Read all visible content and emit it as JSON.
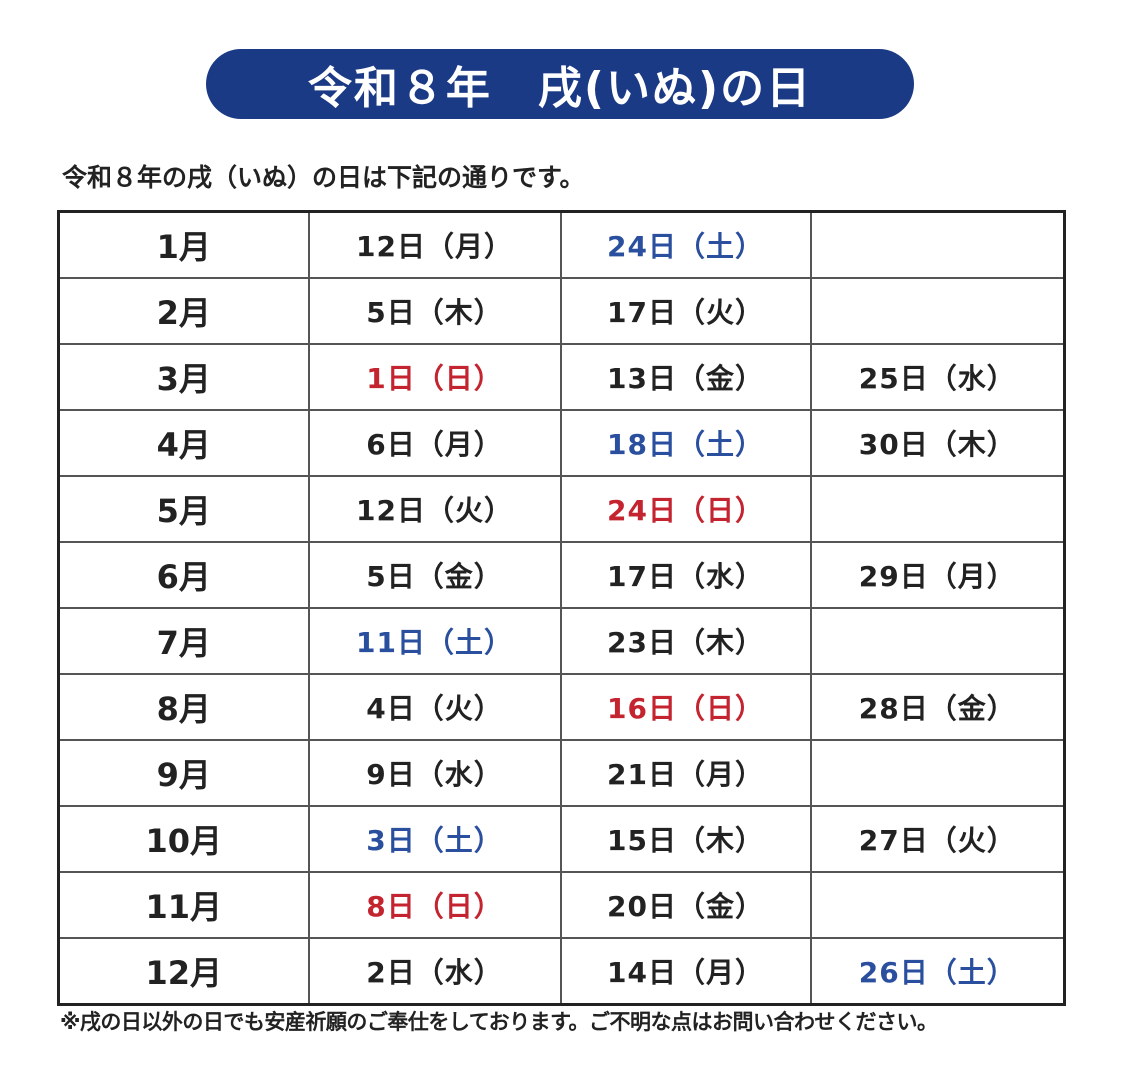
{
  "title": "令和８年　戌(いぬ)の日",
  "intro": "令和８年の戌（いぬ）の日は下記の通りです。",
  "colors": {
    "banner": "#1b3a86",
    "weekday": "#222222",
    "saturday": "#2a4f9e",
    "sunday": "#c4242f"
  },
  "table": {
    "rows": [
      {
        "month": "1月",
        "dates": [
          {
            "text": "12日（月）",
            "type": "weekday"
          },
          {
            "text": "24日（土）",
            "type": "saturday"
          },
          {
            "text": "",
            "type": "weekday"
          }
        ]
      },
      {
        "month": "2月",
        "dates": [
          {
            "text": "5日（木）",
            "type": "weekday"
          },
          {
            "text": "17日（火）",
            "type": "weekday"
          },
          {
            "text": "",
            "type": "weekday"
          }
        ]
      },
      {
        "month": "3月",
        "dates": [
          {
            "text": "1日（日）",
            "type": "sunday"
          },
          {
            "text": "13日（金）",
            "type": "weekday"
          },
          {
            "text": "25日（水）",
            "type": "weekday"
          }
        ]
      },
      {
        "month": "4月",
        "dates": [
          {
            "text": "6日（月）",
            "type": "weekday"
          },
          {
            "text": "18日（土）",
            "type": "saturday"
          },
          {
            "text": "30日（木）",
            "type": "weekday"
          }
        ]
      },
      {
        "month": "5月",
        "dates": [
          {
            "text": "12日（火）",
            "type": "weekday"
          },
          {
            "text": "24日（日）",
            "type": "sunday"
          },
          {
            "text": "",
            "type": "weekday"
          }
        ]
      },
      {
        "month": "6月",
        "dates": [
          {
            "text": "5日（金）",
            "type": "weekday"
          },
          {
            "text": "17日（水）",
            "type": "weekday"
          },
          {
            "text": "29日（月）",
            "type": "weekday"
          }
        ]
      },
      {
        "month": "7月",
        "dates": [
          {
            "text": "11日（土）",
            "type": "saturday"
          },
          {
            "text": "23日（木）",
            "type": "weekday"
          },
          {
            "text": "",
            "type": "weekday"
          }
        ]
      },
      {
        "month": "8月",
        "dates": [
          {
            "text": "4日（火）",
            "type": "weekday"
          },
          {
            "text": "16日（日）",
            "type": "sunday"
          },
          {
            "text": "28日（金）",
            "type": "weekday"
          }
        ]
      },
      {
        "month": "9月",
        "dates": [
          {
            "text": "9日（水）",
            "type": "weekday"
          },
          {
            "text": "21日（月）",
            "type": "weekday"
          },
          {
            "text": "",
            "type": "weekday"
          }
        ]
      },
      {
        "month": "10月",
        "dates": [
          {
            "text": "3日（土）",
            "type": "saturday"
          },
          {
            "text": "15日（木）",
            "type": "weekday"
          },
          {
            "text": "27日（火）",
            "type": "weekday"
          }
        ]
      },
      {
        "month": "11月",
        "dates": [
          {
            "text": "8日（日）",
            "type": "sunday"
          },
          {
            "text": "20日（金）",
            "type": "weekday"
          },
          {
            "text": "",
            "type": "weekday"
          }
        ]
      },
      {
        "month": "12月",
        "dates": [
          {
            "text": "2日（水）",
            "type": "weekday"
          },
          {
            "text": "14日（月）",
            "type": "weekday"
          },
          {
            "text": "26日（土）",
            "type": "saturday"
          }
        ]
      }
    ]
  },
  "footnote": "※戌の日以外の日でも安産祈願のご奉仕をしております。ご不明な点はお問い合わせください。"
}
